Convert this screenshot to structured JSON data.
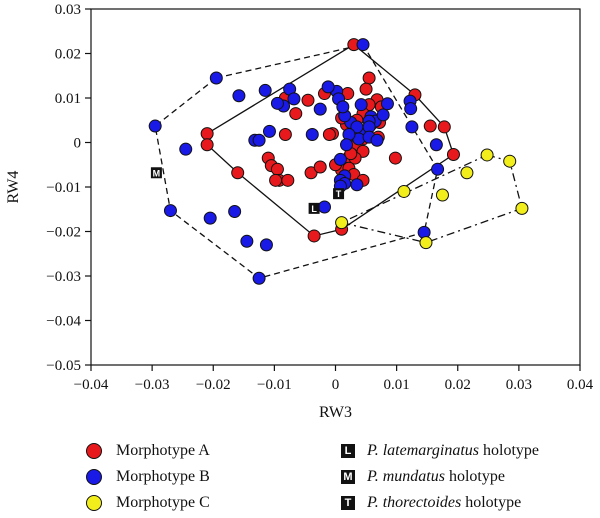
{
  "chart_data": {
    "type": "scatter",
    "xlabel": "RW3",
    "ylabel": "RW4",
    "xlim": [
      -0.04,
      0.04
    ],
    "ylim": [
      -0.05,
      0.03
    ],
    "x_ticks": [
      "−0.04",
      "−0.03",
      "−0.02",
      "−0.01",
      "0",
      "0.01",
      "0.02",
      "0.03",
      "0.04"
    ],
    "y_ticks": [
      "0.03",
      "0.02",
      "0.01",
      "0",
      "−0.01",
      "−0.02",
      "−0.03",
      "−0.04",
      "−0.05"
    ],
    "series": [
      {
        "name": "Morphotype A",
        "color": "#e8191c",
        "hull_style": "solid",
        "points": [
          [
            0.003,
            0.022
          ],
          [
            -0.021,
            0.002
          ],
          [
            -0.021,
            -0.0005
          ],
          [
            -0.016,
            -0.0068
          ],
          [
            -0.0035,
            -0.021
          ],
          [
            0.001,
            -0.0195
          ],
          [
            0.013,
            0.0107
          ],
          [
            0.0155,
            0.0037
          ],
          [
            0.0178,
            0.0035
          ],
          [
            0.0193,
            -0.0027
          ],
          [
            -0.0082,
            0.01
          ],
          [
            -0.0045,
            0.0095
          ],
          [
            -0.0065,
            0.0065
          ],
          [
            -0.0018,
            0.011
          ],
          [
            0.002,
            0.011
          ],
          [
            0.0055,
            0.0145
          ],
          [
            0.005,
            0.012
          ],
          [
            0.0068,
            0.0096
          ],
          [
            0.0055,
            0.0085
          ],
          [
            0.0075,
            0.008
          ],
          [
            0.0045,
            0.0065
          ],
          [
            0.0035,
            0.005
          ],
          [
            0.0015,
            0.006
          ],
          [
            0.0058,
            0.004
          ],
          [
            0.0072,
            0.0045
          ],
          [
            0.0018,
            0.004
          ],
          [
            0.0025,
            0.0015
          ],
          [
            0.0052,
            0.002
          ],
          [
            0.0045,
            0.0008
          ],
          [
            0.007,
            0.0012
          ],
          [
            0.0035,
            -0.0005
          ],
          [
            0.0045,
            -0.002
          ],
          [
            0.0022,
            -0.0033
          ],
          [
            0.0032,
            -0.0035
          ],
          [
            0.0005,
            -0.0048
          ],
          [
            0.001,
            -0.0062
          ],
          [
            0.0022,
            -0.0058
          ],
          [
            0.003,
            -0.0072
          ],
          [
            0.0045,
            -0.0085
          ],
          [
            0.0098,
            -0.0035
          ],
          [
            -0.0082,
            0.0018
          ],
          [
            -0.011,
            -0.0035
          ],
          [
            -0.0105,
            -0.0052
          ],
          [
            -0.0095,
            -0.006
          ],
          [
            -0.0092,
            -0.0085
          ],
          [
            -0.0098,
            -0.0085
          ],
          [
            -0.0078,
            -0.0085
          ],
          [
            -0.004,
            -0.0068
          ],
          [
            -0.0025,
            -0.0055
          ],
          [
            0.0,
            -0.005
          ],
          [
            -0.0005,
            0.002
          ],
          [
            -0.001,
            0.0018
          ],
          [
            0.001,
            0.0055
          ],
          [
            0.0025,
            -0.0025
          ]
        ]
      },
      {
        "name": "Morphotype B",
        "color": "#1a1ae6",
        "hull_style": "dashed",
        "points": [
          [
            -0.0295,
            0.0037
          ],
          [
            -0.0195,
            0.0145
          ],
          [
            0.0045,
            0.022
          ],
          [
            0.0167,
            -0.006
          ],
          [
            0.0145,
            -0.0202
          ],
          [
            -0.0125,
            -0.0305
          ],
          [
            -0.027,
            -0.0153
          ],
          [
            -0.0245,
            -0.0015
          ],
          [
            -0.0205,
            -0.017
          ],
          [
            -0.0165,
            -0.0155
          ],
          [
            -0.0145,
            -0.0222
          ],
          [
            -0.0113,
            -0.023
          ],
          [
            -0.0158,
            0.0105
          ],
          [
            -0.0115,
            0.0117
          ],
          [
            -0.0075,
            0.012
          ],
          [
            -0.0068,
            0.0098
          ],
          [
            -0.0085,
            0.0082
          ],
          [
            -0.0095,
            0.0088
          ],
          [
            -0.0132,
            0.0005
          ],
          [
            -0.0125,
            0.0005
          ],
          [
            -0.0108,
            0.0025
          ],
          [
            -0.0025,
            0.0075
          ],
          [
            0.0002,
            0.0115
          ],
          [
            -0.0012,
            0.0125
          ],
          [
            0.0005,
            0.0098
          ],
          [
            0.0042,
            0.0085
          ],
          [
            0.0058,
            0.0058
          ],
          [
            0.0065,
            0.0048
          ],
          [
            0.0078,
            0.0062
          ],
          [
            0.0085,
            0.0087
          ],
          [
            0.0122,
            0.0093
          ],
          [
            0.0123,
            0.0076
          ],
          [
            0.0125,
            0.0035
          ],
          [
            0.0165,
            -0.0005
          ],
          [
            0.0055,
            0.0048
          ],
          [
            0.0048,
            0.0025
          ],
          [
            0.0038,
            0.0008
          ],
          [
            0.0025,
            0.0045
          ],
          [
            0.0015,
            0.006
          ],
          [
            0.0035,
            0.0035
          ],
          [
            0.0012,
            0.008
          ],
          [
            0.0055,
            0.0035
          ],
          [
            0.0022,
            0.0018
          ],
          [
            -0.0038,
            0.0018
          ],
          [
            0.0018,
            -0.0005
          ],
          [
            0.0055,
            0.0012
          ],
          [
            0.0068,
            0.0005
          ],
          [
            0.0008,
            -0.0038
          ],
          [
            0.0015,
            -0.0075
          ],
          [
            0.0008,
            -0.0085
          ],
          [
            0.0015,
            -0.0092
          ],
          [
            0.0008,
            -0.0098
          ],
          [
            -0.0018,
            -0.0145
          ],
          [
            0.0035,
            -0.0095
          ]
        ]
      },
      {
        "name": "Morphotype C",
        "color": "#f2ee1c",
        "hull_style": "dashdot",
        "points": [
          [
            0.0248,
            -0.0028
          ],
          [
            0.0285,
            -0.0042
          ],
          [
            0.0305,
            -0.0148
          ],
          [
            0.0148,
            -0.0225
          ],
          [
            0.001,
            -0.018
          ],
          [
            0.0112,
            -0.011
          ],
          [
            0.0175,
            -0.0118
          ],
          [
            0.0215,
            -0.0068
          ]
        ]
      }
    ],
    "hulls": {
      "Morphotype A": [
        [
          0.003,
          0.022
        ],
        [
          0.013,
          0.0107
        ],
        [
          0.0178,
          0.0035
        ],
        [
          0.0193,
          -0.0027
        ],
        [
          0.001,
          -0.0195
        ],
        [
          -0.0035,
          -0.021
        ],
        [
          -0.016,
          -0.0068
        ],
        [
          -0.021,
          -0.0005
        ],
        [
          -0.021,
          0.002
        ],
        [
          0.003,
          0.022
        ]
      ],
      "Morphotype B": [
        [
          -0.0195,
          0.0145
        ],
        [
          0.0045,
          0.022
        ],
        [
          0.0167,
          -0.006
        ],
        [
          0.0145,
          -0.0202
        ],
        [
          -0.0125,
          -0.0305
        ],
        [
          -0.027,
          -0.0153
        ],
        [
          -0.0295,
          0.0037
        ],
        [
          -0.0195,
          0.0145
        ]
      ],
      "Morphotype C": [
        [
          0.0248,
          -0.0028
        ],
        [
          0.0285,
          -0.0042
        ],
        [
          0.0305,
          -0.0148
        ],
        [
          0.0148,
          -0.0225
        ],
        [
          0.001,
          -0.018
        ],
        [
          0.0248,
          -0.0028
        ]
      ]
    },
    "holotypes": [
      {
        "code": "L",
        "species": "P. latemarginatus",
        "x": -0.0035,
        "y": -0.0148
      },
      {
        "code": "M",
        "species": "P. mundatus",
        "x": -0.0293,
        "y": -0.0068
      },
      {
        "code": "T",
        "species": "P. thorectoides",
        "x": 0.0005,
        "y": -0.0115
      }
    ]
  },
  "legend": {
    "series": [
      {
        "label": "Morphotype A",
        "color": "#e8191c"
      },
      {
        "label": "Morphotype B",
        "color": "#1a1ae6"
      },
      {
        "label": "Morphotype C",
        "color": "#f2ee1c"
      }
    ],
    "holotypes": [
      {
        "badge": "L",
        "species": "P. latemarginatus",
        "suffix": "holotype"
      },
      {
        "badge": "M",
        "species": "P. mundatus",
        "suffix": "holotype"
      },
      {
        "badge": "T",
        "species": "P. thorectoides",
        "suffix": "holotype"
      }
    ]
  }
}
